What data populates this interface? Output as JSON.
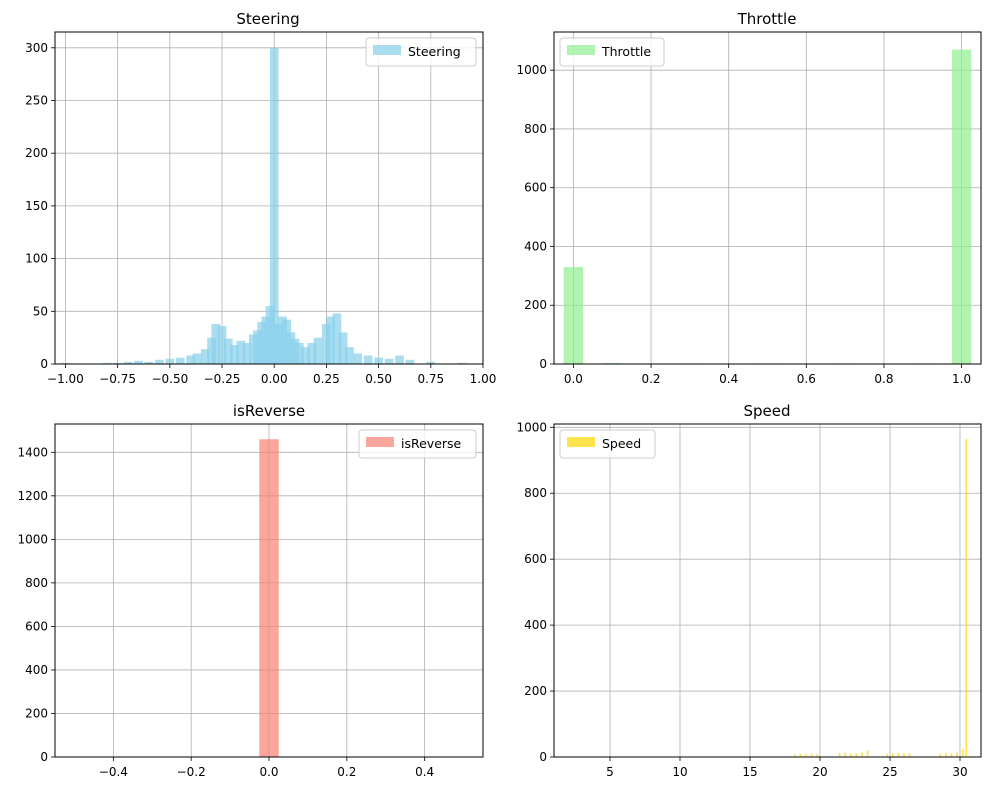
{
  "chart_data": [
    {
      "type": "bar",
      "title": "Steering",
      "color": "#87ceeb",
      "legend": "Steering",
      "legend_position": "top-right",
      "grid": true,
      "xlim": [
        -1.05,
        1.0
      ],
      "ylim": [
        0,
        315
      ],
      "xticks": [
        -1.0,
        -0.75,
        -0.5,
        -0.25,
        0.0,
        0.25,
        0.5,
        0.75,
        1.0
      ],
      "xtick_labels": [
        "−1.00",
        "−0.75",
        "−0.50",
        "−0.25",
        "0.00",
        "0.25",
        "0.50",
        "0.75",
        "1.00"
      ],
      "yticks": [
        0,
        50,
        100,
        150,
        200,
        250,
        300
      ],
      "ytick_labels": [
        "0",
        "50",
        "100",
        "150",
        "200",
        "250",
        "300"
      ],
      "bins": [
        [
          -1.0,
          1
        ],
        [
          -0.8,
          1
        ],
        [
          -0.75,
          1
        ],
        [
          -0.7,
          2
        ],
        [
          -0.65,
          3
        ],
        [
          -0.6,
          2
        ],
        [
          -0.55,
          4
        ],
        [
          -0.5,
          5
        ],
        [
          -0.45,
          6
        ],
        [
          -0.4,
          8
        ],
        [
          -0.37,
          10
        ],
        [
          -0.33,
          14
        ],
        [
          -0.3,
          25
        ],
        [
          -0.28,
          38
        ],
        [
          -0.25,
          36
        ],
        [
          -0.22,
          24
        ],
        [
          -0.19,
          18
        ],
        [
          -0.16,
          22
        ],
        [
          -0.13,
          20
        ],
        [
          -0.1,
          28
        ],
        [
          -0.08,
          32
        ],
        [
          -0.06,
          40
        ],
        [
          -0.04,
          45
        ],
        [
          -0.02,
          55
        ],
        [
          0.0,
          300
        ],
        [
          0.02,
          38
        ],
        [
          0.04,
          45
        ],
        [
          0.06,
          42
        ],
        [
          0.08,
          30
        ],
        [
          0.1,
          24
        ],
        [
          0.12,
          20
        ],
        [
          0.15,
          16
        ],
        [
          0.18,
          20
        ],
        [
          0.21,
          25
        ],
        [
          0.25,
          38
        ],
        [
          0.27,
          45
        ],
        [
          0.3,
          48
        ],
        [
          0.33,
          30
        ],
        [
          0.36,
          16
        ],
        [
          0.4,
          10
        ],
        [
          0.45,
          8
        ],
        [
          0.5,
          6
        ],
        [
          0.55,
          5
        ],
        [
          0.6,
          8
        ],
        [
          0.65,
          4
        ],
        [
          0.75,
          2
        ],
        [
          0.9,
          1
        ]
      ]
    },
    {
      "type": "bar",
      "title": "Throttle",
      "color": "#90ee90",
      "legend": "Throttle",
      "legend_position": "top-left",
      "grid": true,
      "xlim": [
        -0.05,
        1.05
      ],
      "ylim": [
        0,
        1130
      ],
      "xticks": [
        0.0,
        0.2,
        0.4,
        0.6,
        0.8,
        1.0
      ],
      "xtick_labels": [
        "0.0",
        "0.2",
        "0.4",
        "0.6",
        "0.8",
        "1.0"
      ],
      "yticks": [
        0,
        200,
        400,
        600,
        800,
        1000
      ],
      "ytick_labels": [
        "0",
        "200",
        "400",
        "600",
        "800",
        "1000"
      ],
      "bins": [
        [
          0.0,
          330
        ],
        [
          0.1,
          3
        ],
        [
          0.3,
          2
        ],
        [
          0.5,
          2
        ],
        [
          0.7,
          2
        ],
        [
          0.9,
          2
        ],
        [
          1.0,
          1070
        ]
      ]
    },
    {
      "type": "bar",
      "title": "isReverse",
      "color": "#fa8072",
      "legend": "isReverse",
      "legend_position": "top-right",
      "grid": true,
      "xlim": [
        -0.55,
        0.55
      ],
      "ylim": [
        0,
        1530
      ],
      "xticks": [
        -0.4,
        -0.2,
        0.0,
        0.2,
        0.4
      ],
      "xtick_labels": [
        "−0.4",
        "−0.2",
        "0.0",
        "0.2",
        "0.4"
      ],
      "yticks": [
        0,
        200,
        400,
        600,
        800,
        1000,
        1200,
        1400
      ],
      "ytick_labels": [
        "0",
        "200",
        "400",
        "600",
        "800",
        "1000",
        "1200",
        "1400"
      ],
      "bins": [
        [
          0.0,
          1460
        ]
      ]
    },
    {
      "type": "bar",
      "title": "Speed",
      "color": "#ffd700",
      "legend": "Speed",
      "legend_position": "top-left",
      "grid": true,
      "xlim": [
        1.0,
        31.5
      ],
      "ylim": [
        0,
        1010
      ],
      "xticks": [
        5,
        10,
        15,
        20,
        25,
        30
      ],
      "xtick_labels": [
        "5",
        "10",
        "15",
        "20",
        "25",
        "30"
      ],
      "yticks": [
        0,
        200,
        400,
        600,
        800,
        1000
      ],
      "ytick_labels": [
        "0",
        "200",
        "400",
        "600",
        "800",
        "1000"
      ],
      "bins": [
        [
          2,
          1
        ],
        [
          4,
          1
        ],
        [
          8,
          1
        ],
        [
          12,
          1
        ],
        [
          15.5,
          2
        ],
        [
          18.2,
          8
        ],
        [
          18.6,
          10
        ],
        [
          19,
          9
        ],
        [
          19.4,
          11
        ],
        [
          19.8,
          9
        ],
        [
          21.4,
          12
        ],
        [
          21.8,
          13
        ],
        [
          22.2,
          11
        ],
        [
          22.6,
          12
        ],
        [
          23,
          14
        ],
        [
          23.4,
          20
        ],
        [
          24.8,
          10
        ],
        [
          25.2,
          12
        ],
        [
          25.6,
          13
        ],
        [
          26,
          11
        ],
        [
          26.4,
          12
        ],
        [
          28.6,
          10
        ],
        [
          29,
          12
        ],
        [
          29.4,
          11
        ],
        [
          29.8,
          14
        ],
        [
          30.2,
          25
        ],
        [
          30.45,
          965
        ]
      ]
    }
  ]
}
